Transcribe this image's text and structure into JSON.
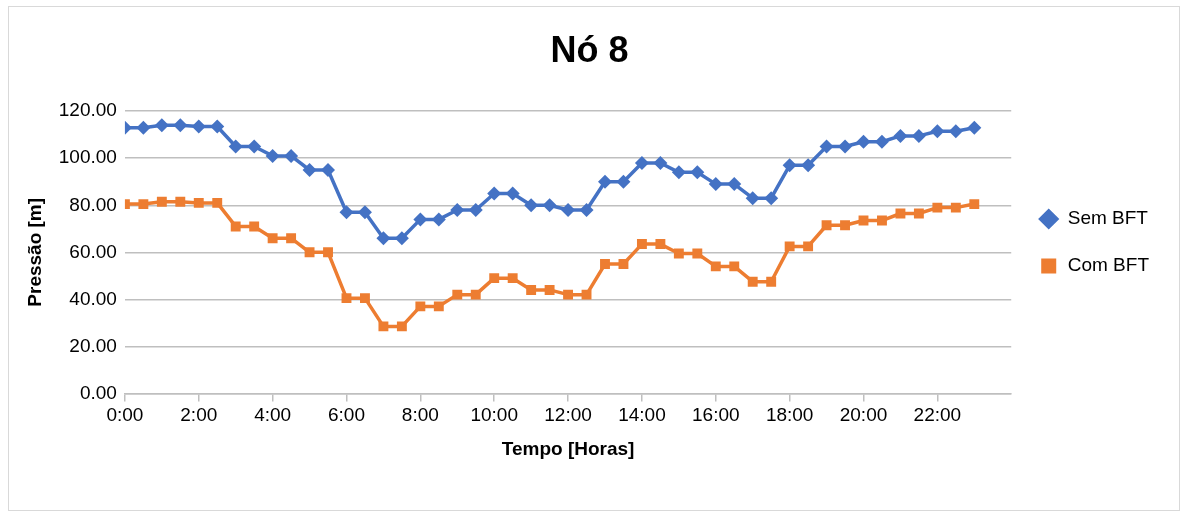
{
  "chart_data": {
    "type": "line",
    "title": "Nó 8",
    "xlabel": "Tempo [Horas]",
    "ylabel": "Pressão [m]",
    "x": [
      0,
      0.5,
      1,
      1.5,
      2,
      2.5,
      3,
      3.5,
      4,
      4.5,
      5,
      5.5,
      6,
      6.5,
      7,
      7.5,
      8,
      8.5,
      9,
      9.5,
      10,
      10.5,
      11,
      11.5,
      12,
      12.5,
      13,
      13.5,
      14,
      14.5,
      15,
      15.5,
      16,
      16.5,
      17,
      17.5,
      18,
      18.5,
      19,
      19.5,
      20,
      20.5,
      21,
      21.5,
      22,
      22.5,
      23
    ],
    "series": [
      {
        "name": "Sem BFT",
        "color": "#4472c4",
        "marker": "diamond",
        "values": [
          113,
          113,
          114,
          114,
          113.5,
          113.5,
          105,
          105,
          101,
          101,
          95,
          95,
          77,
          77,
          66,
          66,
          74,
          74,
          78,
          78,
          85,
          85,
          80,
          80,
          78,
          78,
          90,
          90,
          98,
          98,
          94,
          94,
          89,
          89,
          83,
          83,
          97,
          97,
          105,
          105,
          107,
          107,
          109.5,
          109.5,
          111.5,
          111.5,
          113
        ]
      },
      {
        "name": "Com BFT",
        "color": "#ed7d31",
        "marker": "square",
        "values": [
          80.5,
          80.5,
          81.5,
          81.5,
          81,
          81,
          71,
          71,
          66,
          66,
          60,
          60,
          40.5,
          40.5,
          28.5,
          28.5,
          37,
          37,
          42,
          42,
          49,
          49,
          44,
          44,
          42,
          42,
          55,
          55,
          63.5,
          63.5,
          59.5,
          59.5,
          54,
          54,
          47.5,
          47.5,
          62.5,
          62.5,
          71.5,
          71.5,
          73.5,
          73.5,
          76.5,
          76.5,
          79,
          79,
          80.5
        ]
      }
    ],
    "xlim": [
      0,
      24
    ],
    "xticks": [
      {
        "value": 0,
        "label": "0:00"
      },
      {
        "value": 2,
        "label": "2:00"
      },
      {
        "value": 4,
        "label": "4:00"
      },
      {
        "value": 6,
        "label": "6:00"
      },
      {
        "value": 8,
        "label": "8:00"
      },
      {
        "value": 10,
        "label": "10:00"
      },
      {
        "value": 12,
        "label": "12:00"
      },
      {
        "value": 14,
        "label": "14:00"
      },
      {
        "value": 16,
        "label": "16:00"
      },
      {
        "value": 18,
        "label": "18:00"
      },
      {
        "value": 20,
        "label": "20:00"
      },
      {
        "value": 22,
        "label": "22:00"
      }
    ],
    "ylim": [
      0,
      120
    ],
    "yticks": [
      {
        "value": 0,
        "label": "0.00"
      },
      {
        "value": 20,
        "label": "20.00"
      },
      {
        "value": 40,
        "label": "40.00"
      },
      {
        "value": 60,
        "label": "60.00"
      },
      {
        "value": 80,
        "label": "80.00"
      },
      {
        "value": 100,
        "label": "100.00"
      },
      {
        "value": 120,
        "label": "120.00"
      }
    ],
    "grid": "y",
    "legend": "right",
    "line_style": "solid"
  }
}
